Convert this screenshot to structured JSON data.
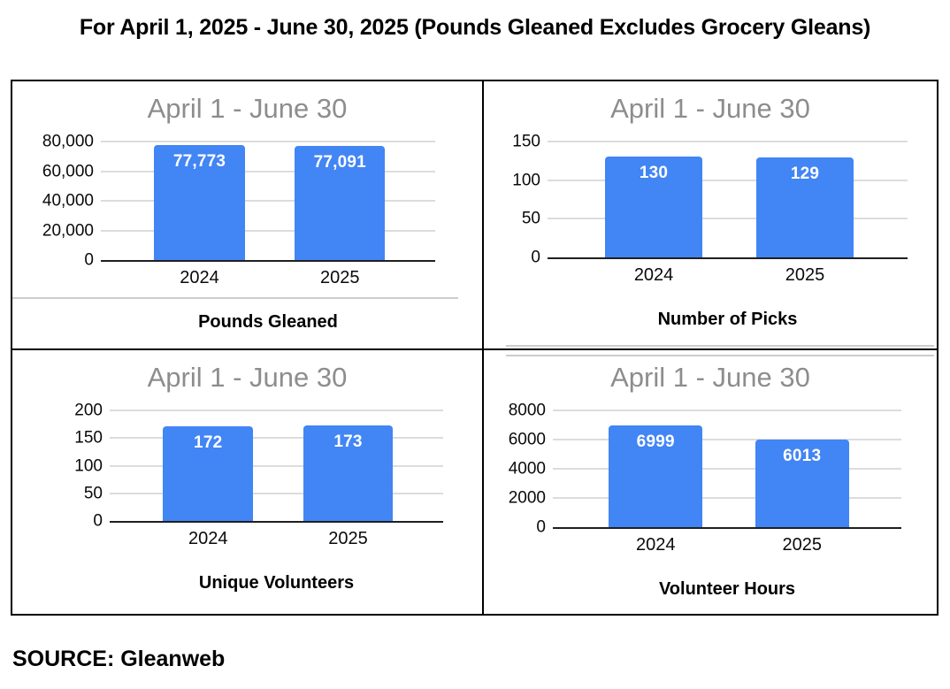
{
  "page": {
    "title": "For April 1, 2025 - June 30, 2025 (Pounds Gleaned Excludes Grocery Gleans)",
    "source_text": "SOURCE: Gleanweb"
  },
  "colors": {
    "bar_fill": "#4285f4",
    "chart_title_gray": "#8d8d8d",
    "gridline": "#dcdcdc",
    "axis_line": "#1f1f1f",
    "bar_label": "#ffffff",
    "frame_border": "#000000"
  },
  "chart_data": [
    {
      "type": "bar",
      "title": "April 1 - June 30",
      "caption": "Pounds Gleaned",
      "categories": [
        "2024",
        "2025"
      ],
      "values": [
        77773,
        77091
      ],
      "value_labels": [
        "77,773",
        "77,091"
      ],
      "ylim": [
        0,
        80000
      ],
      "yticks": [
        0,
        20000,
        40000,
        60000,
        80000
      ],
      "ytick_labels": [
        "0",
        "20,000",
        "40,000",
        "60,000",
        "80,000"
      ],
      "grid": true,
      "legend": "none"
    },
    {
      "type": "bar",
      "title": "April 1 - June 30",
      "caption": "Number of Picks",
      "categories": [
        "2024",
        "2025"
      ],
      "values": [
        130,
        129
      ],
      "value_labels": [
        "130",
        "129"
      ],
      "ylim": [
        0,
        150
      ],
      "yticks": [
        0,
        50,
        100,
        150
      ],
      "ytick_labels": [
        "0",
        "50",
        "100",
        "150"
      ],
      "grid": true,
      "legend": "none"
    },
    {
      "type": "bar",
      "title": "April 1 - June 30",
      "caption": "Unique Volunteers",
      "categories": [
        "2024",
        "2025"
      ],
      "values": [
        172,
        173
      ],
      "value_labels": [
        "172",
        "173"
      ],
      "ylim": [
        0,
        200
      ],
      "yticks": [
        0,
        50,
        100,
        150,
        200
      ],
      "ytick_labels": [
        "0",
        "50",
        "100",
        "150",
        "200"
      ],
      "grid": true,
      "legend": "none"
    },
    {
      "type": "bar",
      "title": "April 1 - June 30",
      "caption": "Volunteer Hours",
      "categories": [
        "2024",
        "2025"
      ],
      "values": [
        6999,
        6013
      ],
      "value_labels": [
        "6999",
        "6013"
      ],
      "ylim": [
        0,
        8000
      ],
      "yticks": [
        0,
        2000,
        4000,
        6000,
        8000
      ],
      "ytick_labels": [
        "0",
        "2000",
        "4000",
        "6000",
        "8000"
      ],
      "grid": true,
      "legend": "none"
    }
  ]
}
